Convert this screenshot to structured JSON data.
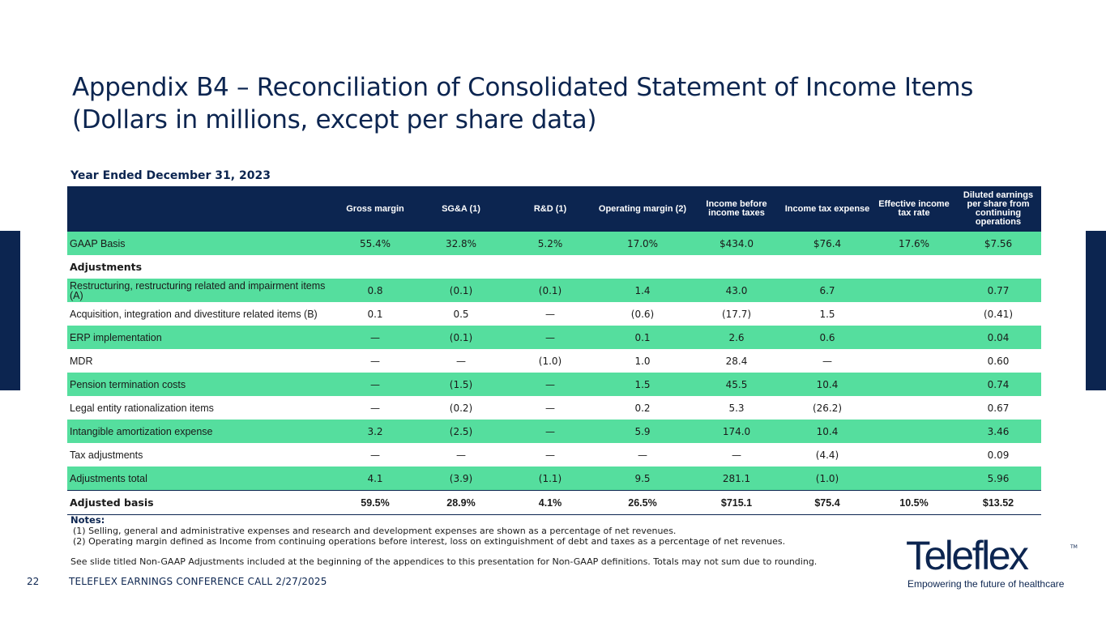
{
  "title": {
    "line1": "Appendix B4 – Reconciliation of Consolidated Statement of Income Items",
    "line2": "(Dollars in millions, except per share data)"
  },
  "period": "Year Ended December 31, 2023",
  "table": {
    "columns": [
      "",
      "Gross margin",
      "SG&A (1)",
      "R&D (1)",
      "Operating margin (2)",
      "Income before income taxes",
      "Income tax expense",
      "Effective income tax rate",
      "Diluted earnings per share from continuing operations"
    ],
    "rows": [
      {
        "label": "GAAP Basis",
        "cells": [
          "55.4%",
          "32.8%",
          "5.2%",
          "17.0%",
          "$434.0",
          "$76.4",
          "17.6%",
          "$7.56"
        ]
      },
      {
        "label": "Adjustments",
        "cells": [
          "",
          "",
          "",
          "",
          "",
          "",
          "",
          ""
        ]
      },
      {
        "label": "Restructuring, restructuring related and impairment items (A)",
        "cells": [
          "0.8",
          "(0.1)",
          "(0.1)",
          "1.4",
          "43.0",
          "6.7",
          "",
          "0.77"
        ]
      },
      {
        "label": "Acquisition, integration and divestiture related items (B)",
        "cells": [
          "0.1",
          "0.5",
          "—",
          "(0.6)",
          "(17.7)",
          "1.5",
          "",
          "(0.41)"
        ]
      },
      {
        "label": "ERP implementation",
        "cells": [
          "—",
          "(0.1)",
          "—",
          "0.1",
          "2.6",
          "0.6",
          "",
          "0.04"
        ]
      },
      {
        "label": "MDR",
        "cells": [
          "—",
          "—",
          "(1.0)",
          "1.0",
          "28.4",
          "—",
          "",
          "0.60"
        ]
      },
      {
        "label": "Pension termination costs",
        "cells": [
          "—",
          "(1.5)",
          "—",
          "1.5",
          "45.5",
          "10.4",
          "",
          "0.74"
        ]
      },
      {
        "label": "Legal entity rationalization items",
        "cells": [
          "—",
          "(0.2)",
          "—",
          "0.2",
          "5.3",
          "(26.2)",
          "",
          "0.67"
        ]
      },
      {
        "label": "Intangible amortization expense",
        "cells": [
          "3.2",
          "(2.5)",
          "—",
          "5.9",
          "174.0",
          "10.4",
          "",
          "3.46"
        ]
      },
      {
        "label": "Tax adjustments",
        "cells": [
          "—",
          "—",
          "—",
          "—",
          "—",
          "(4.4)",
          "",
          "0.09"
        ]
      },
      {
        "label": "Adjustments total",
        "cells": [
          "4.1",
          "(3.9)",
          "(1.1)",
          "9.5",
          "281.1",
          "(1.0)",
          "",
          "5.96"
        ]
      },
      {
        "label": "Adjusted basis",
        "cells": [
          "59.5%",
          "28.9%",
          "4.1%",
          "26.5%",
          "$715.1",
          "$75.4",
          "10.5%",
          "$13.52"
        ]
      }
    ]
  },
  "notes": {
    "heading": "Notes:",
    "items": [
      "(1) Selling, general and administrative expenses and research and development expenses are shown as a percentage of net revenues.",
      "(2) Operating margin defined as Income from continuing operations before interest, loss on extinguishment of debt and taxes as a percentage of net revenues."
    ],
    "see_slide": "See slide titled Non-GAAP Adjustments included at the beginning of the appendices to this presentation for Non-GAAP definitions. Totals may not sum due to rounding."
  },
  "footer": {
    "page_number": "22",
    "text": "TELEFLEX EARNINGS CONFERENCE CALL 2/27/2025"
  },
  "logo": {
    "wordmark": "Teleflex",
    "trademark": "TM",
    "tagline": "Empowering the future of healthcare"
  },
  "colors": {
    "navy": "#0c2550",
    "green": "#55de9e"
  }
}
